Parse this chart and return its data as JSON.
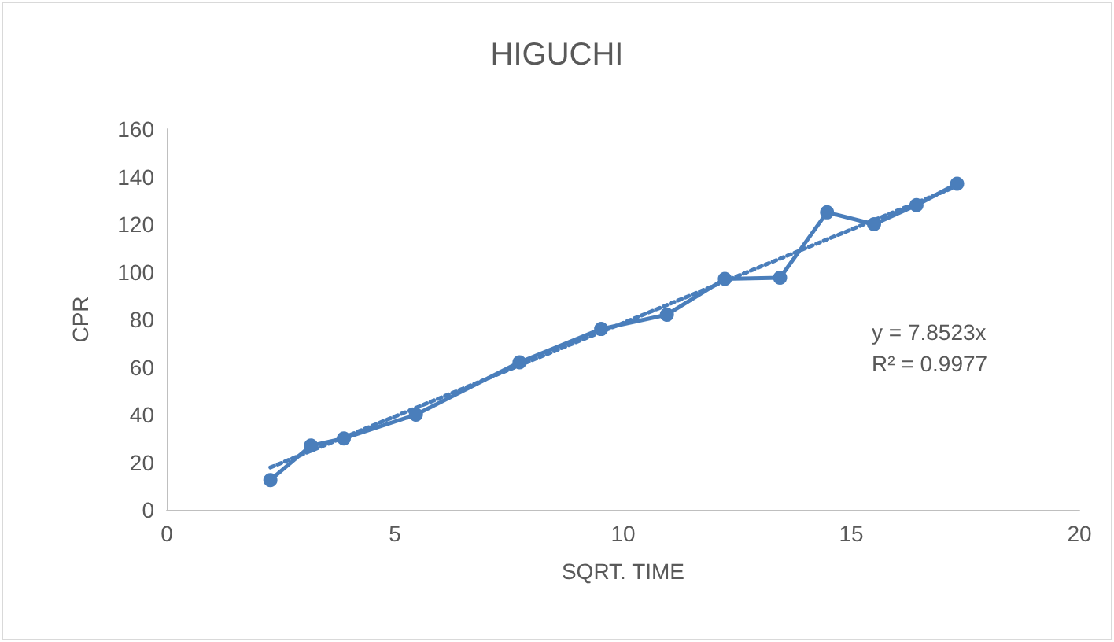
{
  "chart_data": {
    "type": "line",
    "title": "HIGUCHI",
    "xlabel": "SQRT. TIME",
    "ylabel": "CPR",
    "xlim": [
      0,
      20
    ],
    "xticks": [
      0,
      5,
      10,
      15,
      20
    ],
    "ylim": [
      0,
      160
    ],
    "yticks": [
      0,
      20,
      40,
      60,
      80,
      100,
      120,
      140,
      160
    ],
    "grid": false,
    "annotations": [
      "y = 7.8523x",
      "R² = 0.9977"
    ],
    "series": [
      {
        "color": "#4a7ebb",
        "marker": "circle",
        "line_style": "solid",
        "x": [
          2.27,
          3.16,
          3.88,
          5.46,
          7.73,
          9.52,
          10.96,
          12.23,
          13.44,
          14.47,
          15.5,
          16.43,
          17.32
        ],
        "values": [
          12.5,
          27,
          30,
          40,
          62,
          76,
          82,
          97,
          97.5,
          125,
          120,
          128,
          137
        ]
      },
      {
        "color": "#4a7ebb",
        "marker": "none",
        "line_style": "dotted",
        "x": [
          2.27,
          17.32
        ],
        "values": [
          17.8,
          136.0
        ]
      }
    ]
  }
}
